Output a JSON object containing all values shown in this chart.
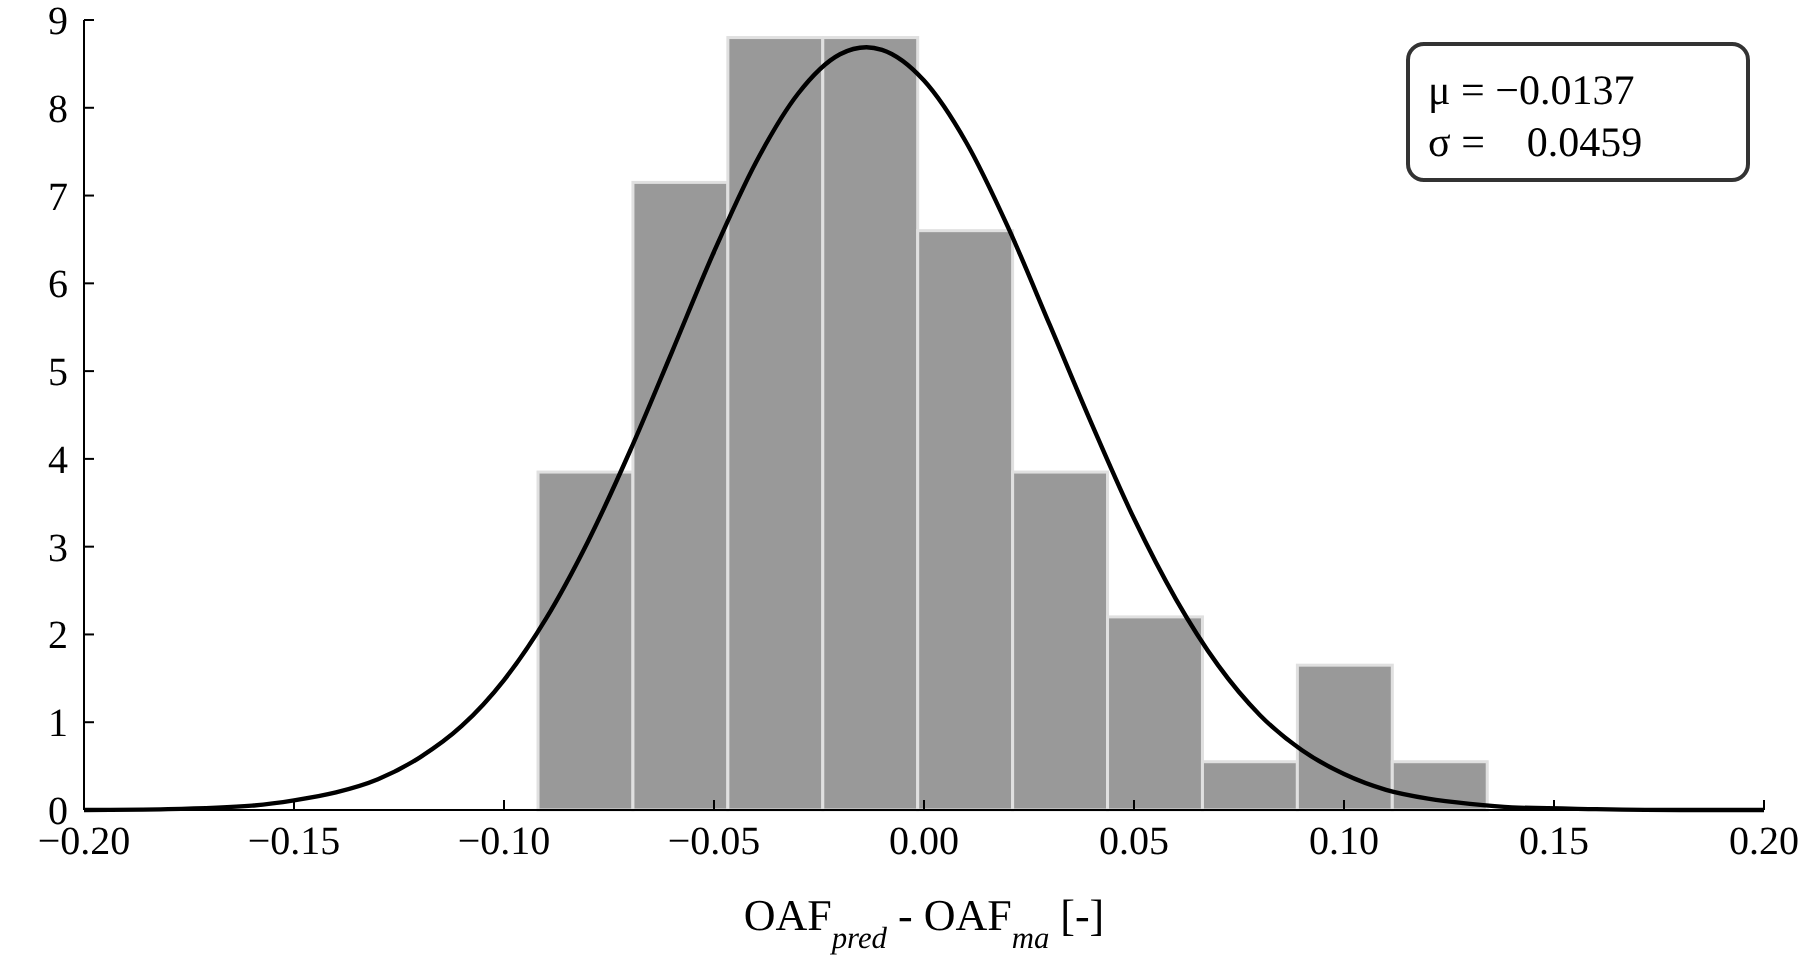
{
  "chart_data": {
    "type": "histogram",
    "xlabel": "OAF$_{pred}$ - OAF$_{ma}$ [-]",
    "xlim": [
      -0.2,
      0.2
    ],
    "xticks": [
      {
        "value": -0.2,
        "label": "−0.20"
      },
      {
        "value": -0.15,
        "label": "−0.15"
      },
      {
        "value": -0.1,
        "label": "−0.10"
      },
      {
        "value": -0.05,
        "label": "−0.05"
      },
      {
        "value": 0,
        "label": "0.00"
      },
      {
        "value": 0.05,
        "label": "0.05"
      },
      {
        "value": 0.1,
        "label": "0.10"
      },
      {
        "value": 0.15,
        "label": "0.15"
      },
      {
        "value": 0.2,
        "label": "0.20"
      }
    ],
    "ylim": [
      0,
      9
    ],
    "yticks": [
      0,
      1,
      2,
      3,
      4,
      5,
      6,
      7,
      8,
      9
    ],
    "grid": false,
    "annotations": [
      "μ = −0.0137",
      "σ =    0.0459"
    ],
    "series": [
      {
        "color": "#999999",
        "bins": [
          -0.0919,
          -0.0693,
          -0.0467,
          -0.0241,
          -0.0015,
          0.0211,
          0.0437,
          0.0663,
          0.0889,
          0.1115,
          0.1341
        ],
        "values": [
          3.85,
          7.15,
          8.8,
          8.8,
          6.6,
          3.85,
          2.2,
          0.55,
          1.65,
          0.55
        ]
      },
      {
        "type": "line",
        "color": "#000000",
        "x": [
          -0.2,
          -0.18,
          -0.16,
          -0.15,
          -0.14,
          -0.13,
          -0.12,
          -0.11,
          -0.1,
          -0.09,
          -0.08,
          -0.07,
          -0.06,
          -0.05,
          -0.04,
          -0.03,
          -0.02,
          -0.0137,
          -0.01,
          0,
          0.01,
          0.02,
          0.03,
          0.04,
          0.05,
          0.06,
          0.07,
          0.08,
          0.09,
          0.1,
          0.11,
          0.12,
          0.13,
          0.14,
          0.16,
          0.18,
          0.2
        ],
        "values": [
          0.0,
          0.01,
          0.05,
          0.11,
          0.2,
          0.35,
          0.6,
          0.96,
          1.48,
          2.18,
          3.06,
          4.09,
          5.22,
          6.36,
          7.38,
          8.16,
          8.61,
          8.69,
          8.66,
          8.31,
          7.61,
          6.64,
          5.52,
          4.39,
          3.32,
          2.4,
          1.65,
          1.08,
          0.68,
          0.41,
          0.23,
          0.13,
          0.07,
          0.03,
          0.01,
          0.0,
          0.0
        ]
      }
    ]
  }
}
